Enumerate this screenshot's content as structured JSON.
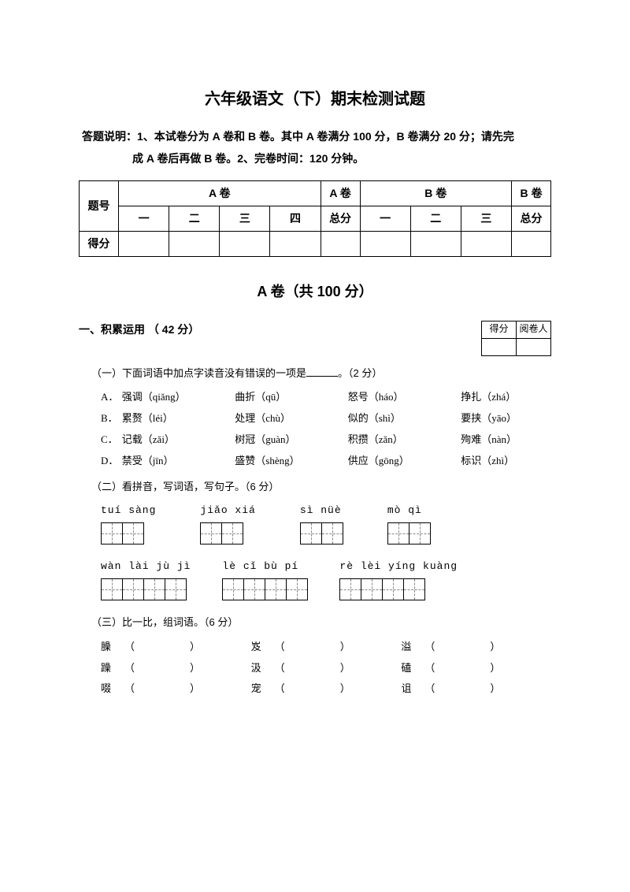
{
  "title": "六年级语文（下）期末检测试题",
  "instructions_line1": "答题说明：1、本试卷分为 A 卷和 B 卷。其中 A 卷满分 100 分，B 卷满分 20 分；请先完",
  "instructions_line2": "成 A 卷后再做 B 卷。2、完卷时间：120 分钟。",
  "score_table": {
    "row_header": "题号",
    "a_label": "A 卷",
    "a_total": "总分",
    "b_label": "B 卷",
    "b_total": "总分",
    "a_cols": [
      "一",
      "二",
      "三",
      "四"
    ],
    "b_cols": [
      "一",
      "二",
      "三"
    ],
    "score_header": "得分"
  },
  "section_a_title": "A 卷（共 100 分）",
  "s1_title": "一、积累运用 （ 42 分）",
  "grader_labels": {
    "score": "得分",
    "grader": "阅卷人"
  },
  "q1_title": "（一）下面词语中加点字读音没有错误的一项是",
  "q1_suffix": "。（2 分）",
  "q1_options": [
    {
      "l": "A．",
      "a": "强调（qiǎng）",
      "b": "曲折（qū）",
      "c": "怒号（háo）",
      "d": "挣扎（zhá）"
    },
    {
      "l": "B．",
      "a": "累赘（léi）",
      "b": "处理（chù）",
      "c": "似的（shì）",
      "d": "要挟（yāo）"
    },
    {
      "l": "C．",
      "a": "记载（zǎi）",
      "b": "树冠（guàn）",
      "c": "积攒（zǎn）",
      "d": "殉难（nàn）"
    },
    {
      "l": "D．",
      "a": "禁受（jīn）",
      "b": "盛赞（shèng）",
      "c": "供应（gōng）",
      "d": "标识（zhì）"
    }
  ],
  "q2_title": "（二）看拼音，写词语，写句子。（6 分）",
  "pinyin_row1": [
    {
      "pinyin": "tuí sàng",
      "boxes": 2
    },
    {
      "pinyin": "jiǎo xiá",
      "boxes": 2
    },
    {
      "pinyin": "sì  nüè",
      "boxes": 2
    },
    {
      "pinyin": "mò  qì",
      "boxes": 2
    }
  ],
  "pinyin_row2": [
    {
      "pinyin": "wàn  lài  jù  jì",
      "boxes": 4
    },
    {
      "pinyin": "lè  cǐ  bù  pí",
      "boxes": 4
    },
    {
      "pinyin": "rè  lèi  yíng kuàng",
      "boxes": 4
    }
  ],
  "q3_title": "（三）比一比，组词语。（6 分）",
  "q3_rows": [
    [
      "臊",
      "岌",
      "溢"
    ],
    [
      "躁",
      "汲",
      "磕"
    ],
    [
      "啜",
      "宠",
      "诅"
    ]
  ]
}
